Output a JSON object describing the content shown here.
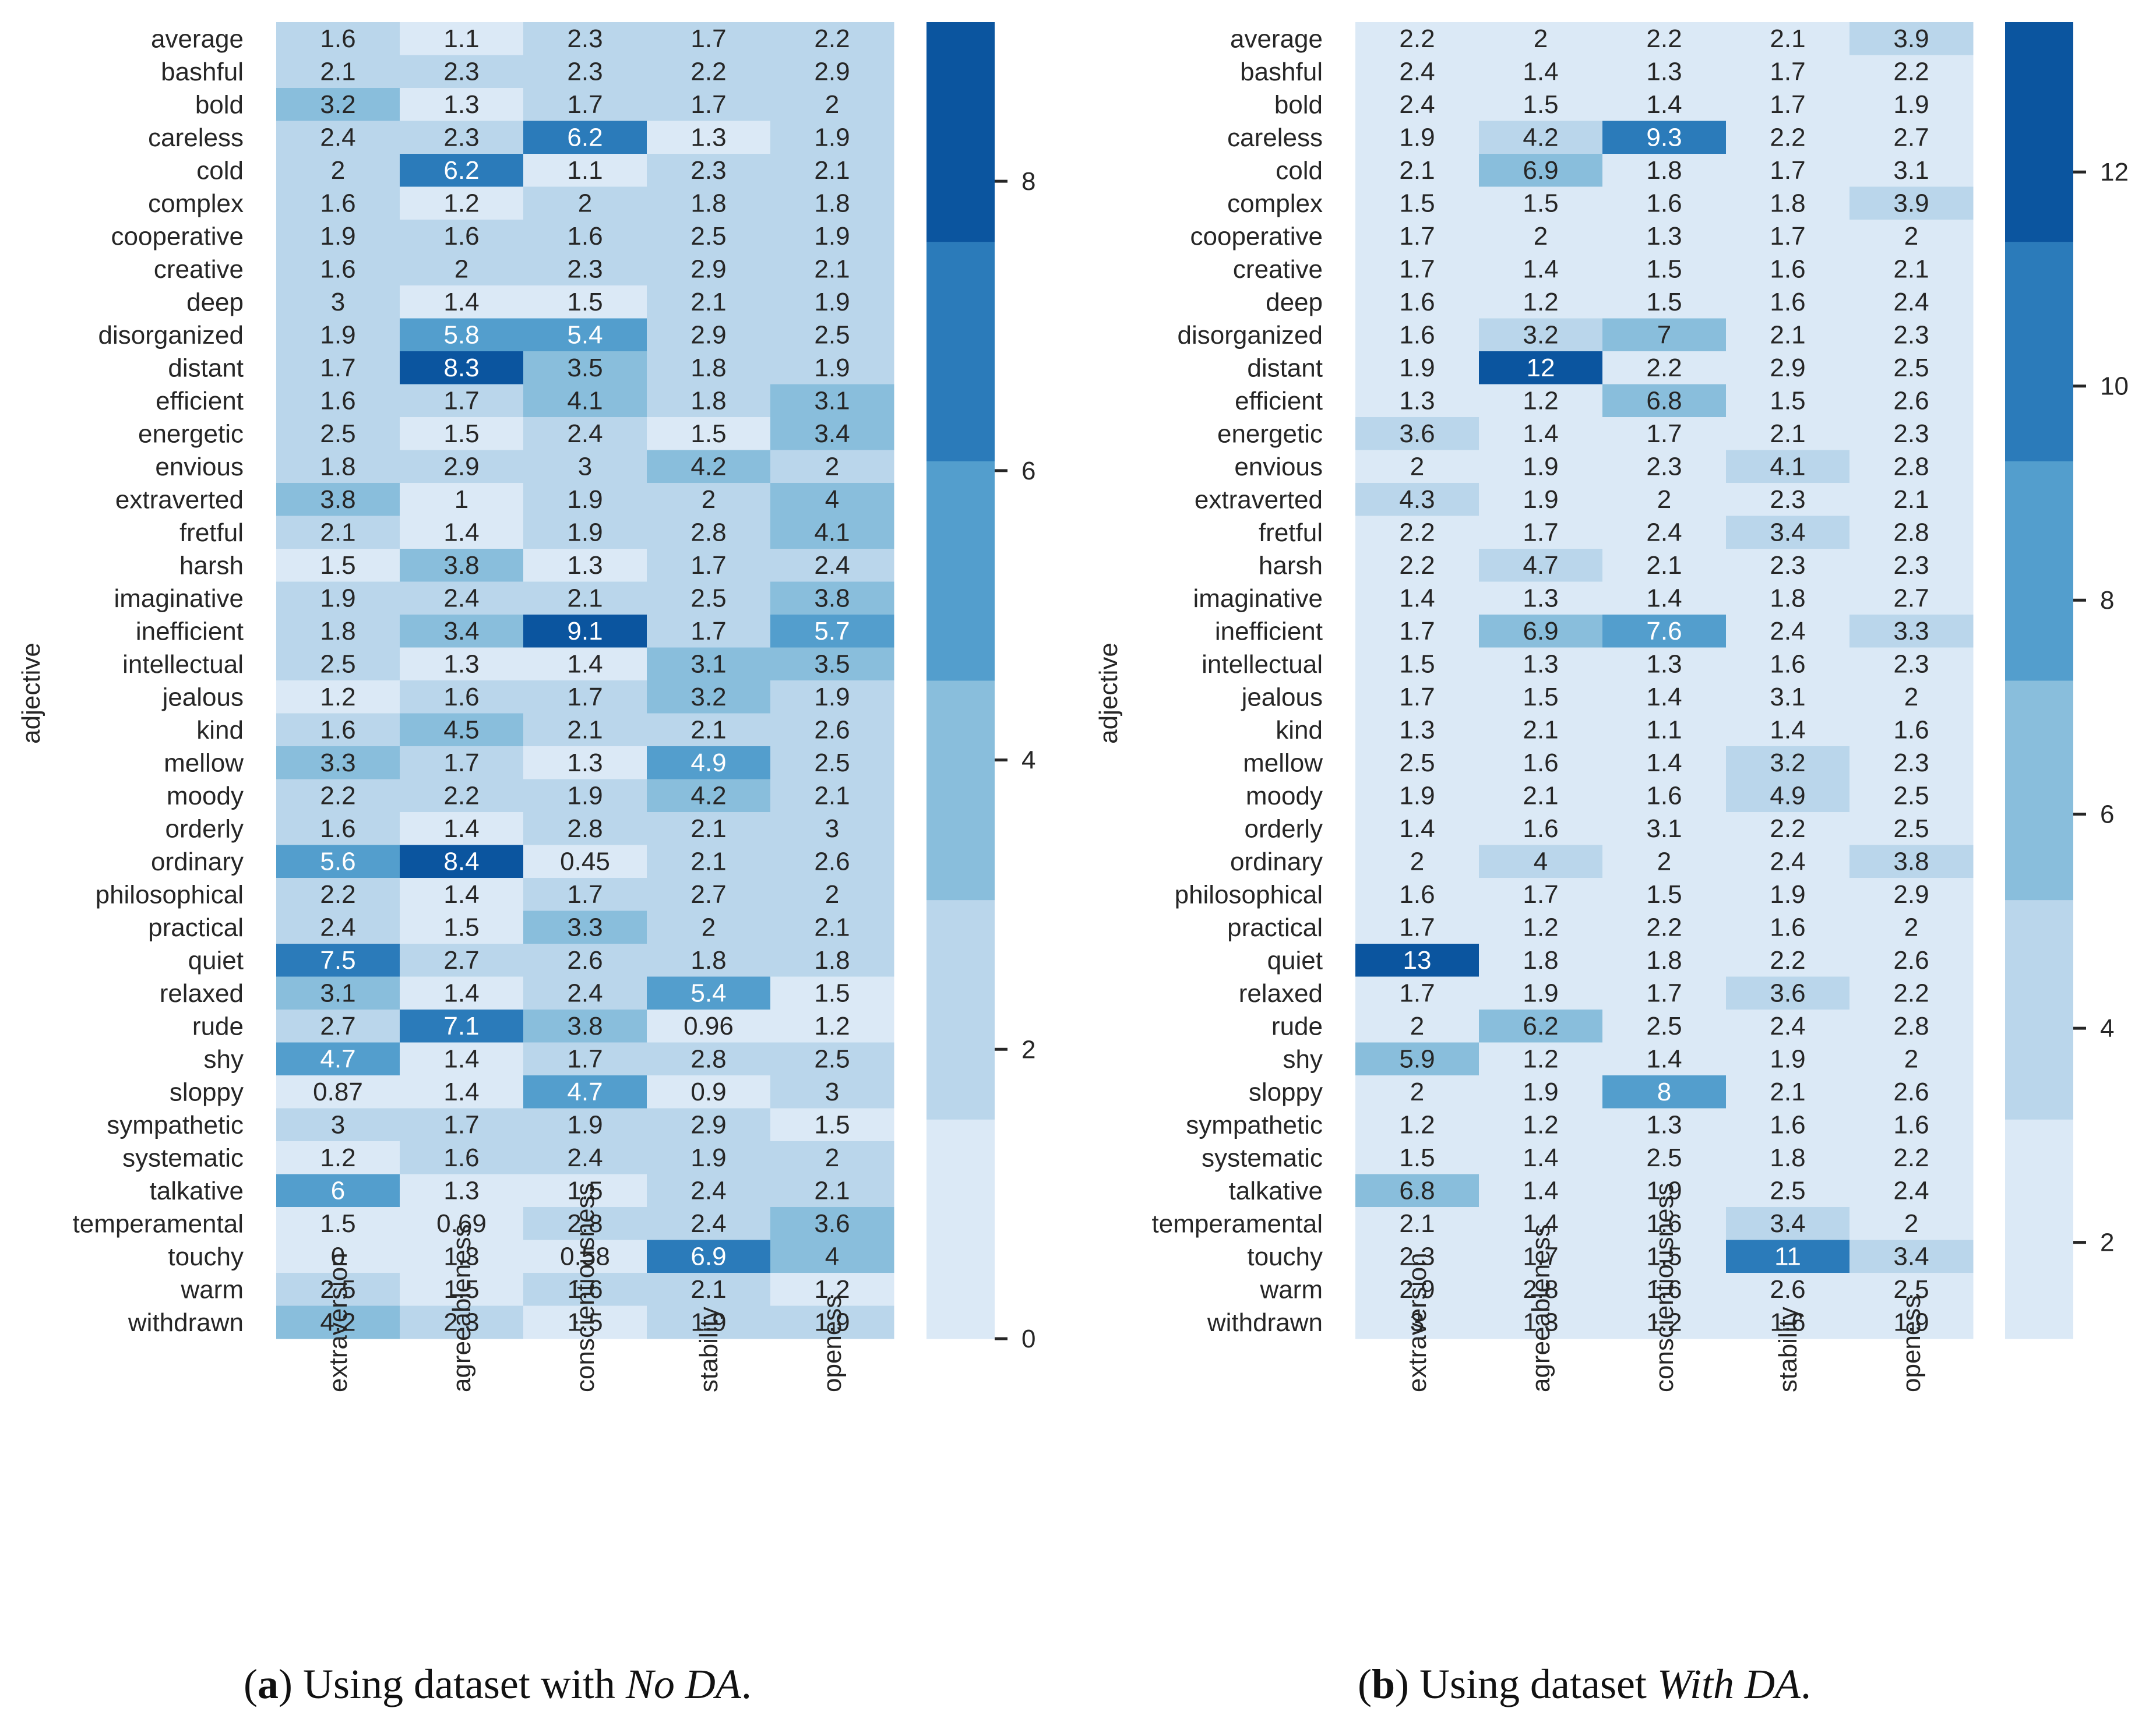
{
  "palette": [
    "#dbe9f6",
    "#bad6eb",
    "#89bedc",
    "#539ecd",
    "#2b7bba",
    "#0b559f"
  ],
  "captions": {
    "a": {
      "label": "a",
      "text": "Using dataset with ",
      "italic": "No DA",
      "end": "."
    },
    "b": {
      "label": "b",
      "text": "Using dataset ",
      "italic": "With DA",
      "end": "."
    }
  },
  "chart_data": [
    {
      "type": "heatmap",
      "ylabel": "adjective",
      "xlabel": "",
      "columns": [
        "extraversion",
        "agreeableness",
        "conscientiousness",
        "stability",
        "openess"
      ],
      "rows": [
        "average",
        "bashful",
        "bold",
        "careless",
        "cold",
        "complex",
        "cooperative",
        "creative",
        "deep",
        "disorganized",
        "distant",
        "efficient",
        "energetic",
        "envious",
        "extraverted",
        "fretful",
        "harsh",
        "imaginative",
        "inefficient",
        "intellectual",
        "jealous",
        "kind",
        "mellow",
        "moody",
        "orderly",
        "ordinary",
        "philosophical",
        "practical",
        "quiet",
        "relaxed",
        "rude",
        "shy",
        "sloppy",
        "sympathetic",
        "systematic",
        "talkative",
        "temperamental",
        "touchy",
        "warm",
        "withdrawn"
      ],
      "values": [
        [
          1.6,
          1.1,
          2.3,
          1.7,
          2.2
        ],
        [
          2.1,
          2.3,
          2.3,
          2.2,
          2.9
        ],
        [
          3.2,
          1.3,
          1.7,
          1.7,
          2
        ],
        [
          2.4,
          2.3,
          6.2,
          1.3,
          1.9
        ],
        [
          2,
          6.2,
          1.1,
          2.3,
          2.1
        ],
        [
          1.6,
          1.2,
          2,
          1.8,
          1.8
        ],
        [
          1.9,
          1.6,
          1.6,
          2.5,
          1.9
        ],
        [
          1.6,
          2,
          2.3,
          2.9,
          2.1
        ],
        [
          3,
          1.4,
          1.5,
          2.1,
          1.9
        ],
        [
          1.9,
          5.8,
          5.4,
          2.9,
          2.5
        ],
        [
          1.7,
          8.3,
          3.5,
          1.8,
          1.9
        ],
        [
          1.6,
          1.7,
          4.1,
          1.8,
          3.1
        ],
        [
          2.5,
          1.5,
          2.4,
          1.5,
          3.4
        ],
        [
          1.8,
          2.9,
          3,
          4.2,
          2
        ],
        [
          3.8,
          1,
          1.9,
          2,
          4
        ],
        [
          2.1,
          1.4,
          1.9,
          2.8,
          4.1
        ],
        [
          1.5,
          3.8,
          1.3,
          1.7,
          2.4
        ],
        [
          1.9,
          2.4,
          2.1,
          2.5,
          3.8
        ],
        [
          1.8,
          3.4,
          9.1,
          1.7,
          5.7
        ],
        [
          2.5,
          1.3,
          1.4,
          3.1,
          3.5
        ],
        [
          1.2,
          1.6,
          1.7,
          3.2,
          1.9
        ],
        [
          1.6,
          4.5,
          2.1,
          2.1,
          2.6
        ],
        [
          3.3,
          1.7,
          1.3,
          4.9,
          2.5
        ],
        [
          2.2,
          2.2,
          1.9,
          4.2,
          2.1
        ],
        [
          1.6,
          1.4,
          2.8,
          2.1,
          3
        ],
        [
          5.6,
          8.4,
          0.45,
          2.1,
          2.6
        ],
        [
          2.2,
          1.4,
          1.7,
          2.7,
          2
        ],
        [
          2.4,
          1.5,
          3.3,
          2,
          2.1
        ],
        [
          7.5,
          2.7,
          2.6,
          1.8,
          1.8
        ],
        [
          3.1,
          1.4,
          2.4,
          5.4,
          1.5
        ],
        [
          2.7,
          7.1,
          3.8,
          0.96,
          1.2
        ],
        [
          4.7,
          1.4,
          1.7,
          2.8,
          2.5
        ],
        [
          0.87,
          1.4,
          4.7,
          0.9,
          3
        ],
        [
          3,
          1.7,
          1.9,
          2.9,
          1.5
        ],
        [
          1.2,
          1.6,
          2.4,
          1.9,
          2
        ],
        [
          6,
          1.3,
          1.5,
          2.4,
          2.1
        ],
        [
          1.5,
          0.69,
          2.8,
          2.4,
          3.6
        ],
        [
          0,
          1.3,
          0.58,
          6.9,
          4
        ],
        [
          2.5,
          1.5,
          1.6,
          2.1,
          1.2
        ],
        [
          4.2,
          2.3,
          1.5,
          1.9,
          1.9
        ]
      ],
      "colorbar": {
        "min": 0,
        "max": 9.1,
        "ticks": [
          0,
          2,
          4,
          6,
          8
        ],
        "levels": 6
      }
    },
    {
      "type": "heatmap",
      "ylabel": "adjective",
      "xlabel": "",
      "columns": [
        "extraversion",
        "agreeableness",
        "conscientiousness",
        "stability",
        "openess"
      ],
      "rows": [
        "average",
        "bashful",
        "bold",
        "careless",
        "cold",
        "complex",
        "cooperative",
        "creative",
        "deep",
        "disorganized",
        "distant",
        "efficient",
        "energetic",
        "envious",
        "extraverted",
        "fretful",
        "harsh",
        "imaginative",
        "inefficient",
        "intellectual",
        "jealous",
        "kind",
        "mellow",
        "moody",
        "orderly",
        "ordinary",
        "philosophical",
        "practical",
        "quiet",
        "relaxed",
        "rude",
        "shy",
        "sloppy",
        "sympathetic",
        "systematic",
        "talkative",
        "temperamental",
        "touchy",
        "warm",
        "withdrawn"
      ],
      "values": [
        [
          2.2,
          2,
          2.2,
          2.1,
          3.9
        ],
        [
          2.4,
          1.4,
          1.3,
          1.7,
          2.2
        ],
        [
          2.4,
          1.5,
          1.4,
          1.7,
          1.9
        ],
        [
          1.9,
          4.2,
          9.3,
          2.2,
          2.7
        ],
        [
          2.1,
          6.9,
          1.8,
          1.7,
          3.1
        ],
        [
          1.5,
          1.5,
          1.6,
          1.8,
          3.9
        ],
        [
          1.7,
          2,
          1.3,
          1.7,
          2
        ],
        [
          1.7,
          1.4,
          1.5,
          1.6,
          2.1
        ],
        [
          1.6,
          1.2,
          1.5,
          1.6,
          2.4
        ],
        [
          1.6,
          3.2,
          7,
          2.1,
          2.3
        ],
        [
          1.9,
          12,
          2.2,
          2.9,
          2.5
        ],
        [
          1.3,
          1.2,
          6.8,
          1.5,
          2.6
        ],
        [
          3.6,
          1.4,
          1.7,
          2.1,
          2.3
        ],
        [
          2,
          1.9,
          2.3,
          4.1,
          2.8
        ],
        [
          4.3,
          1.9,
          2,
          2.3,
          2.1
        ],
        [
          2.2,
          1.7,
          2.4,
          3.4,
          2.8
        ],
        [
          2.2,
          4.7,
          2.1,
          2.3,
          2.3
        ],
        [
          1.4,
          1.3,
          1.4,
          1.8,
          2.7
        ],
        [
          1.7,
          6.9,
          7.6,
          2.4,
          3.3
        ],
        [
          1.5,
          1.3,
          1.3,
          1.6,
          2.3
        ],
        [
          1.7,
          1.5,
          1.4,
          3.1,
          2
        ],
        [
          1.3,
          2.1,
          1.1,
          1.4,
          1.6
        ],
        [
          2.5,
          1.6,
          1.4,
          3.2,
          2.3
        ],
        [
          1.9,
          2.1,
          1.6,
          4.9,
          2.5
        ],
        [
          1.4,
          1.6,
          3.1,
          2.2,
          2.5
        ],
        [
          2,
          4,
          2,
          2.4,
          3.8
        ],
        [
          1.6,
          1.7,
          1.5,
          1.9,
          2.9
        ],
        [
          1.7,
          1.2,
          2.2,
          1.6,
          2
        ],
        [
          13,
          1.8,
          1.8,
          2.2,
          2.6
        ],
        [
          1.7,
          1.9,
          1.7,
          3.6,
          2.2
        ],
        [
          2,
          6.2,
          2.5,
          2.4,
          2.8
        ],
        [
          5.9,
          1.2,
          1.4,
          1.9,
          2
        ],
        [
          2,
          1.9,
          8,
          2.1,
          2.6
        ],
        [
          1.2,
          1.2,
          1.3,
          1.6,
          1.6
        ],
        [
          1.5,
          1.4,
          2.5,
          1.8,
          2.2
        ],
        [
          6.8,
          1.4,
          1.9,
          2.5,
          2.4
        ],
        [
          2.1,
          1.4,
          1.6,
          3.4,
          2
        ],
        [
          2.3,
          1.7,
          1.5,
          11,
          3.4
        ],
        [
          2.9,
          2.8,
          1.6,
          2.6,
          2.5
        ],
        [
          3,
          1.3,
          1.2,
          1.6,
          1.9
        ]
      ],
      "colorbar": {
        "min": 1.1,
        "max": 13.4,
        "ticks": [
          2,
          4,
          6,
          8,
          10,
          12
        ],
        "levels": 6
      }
    }
  ]
}
